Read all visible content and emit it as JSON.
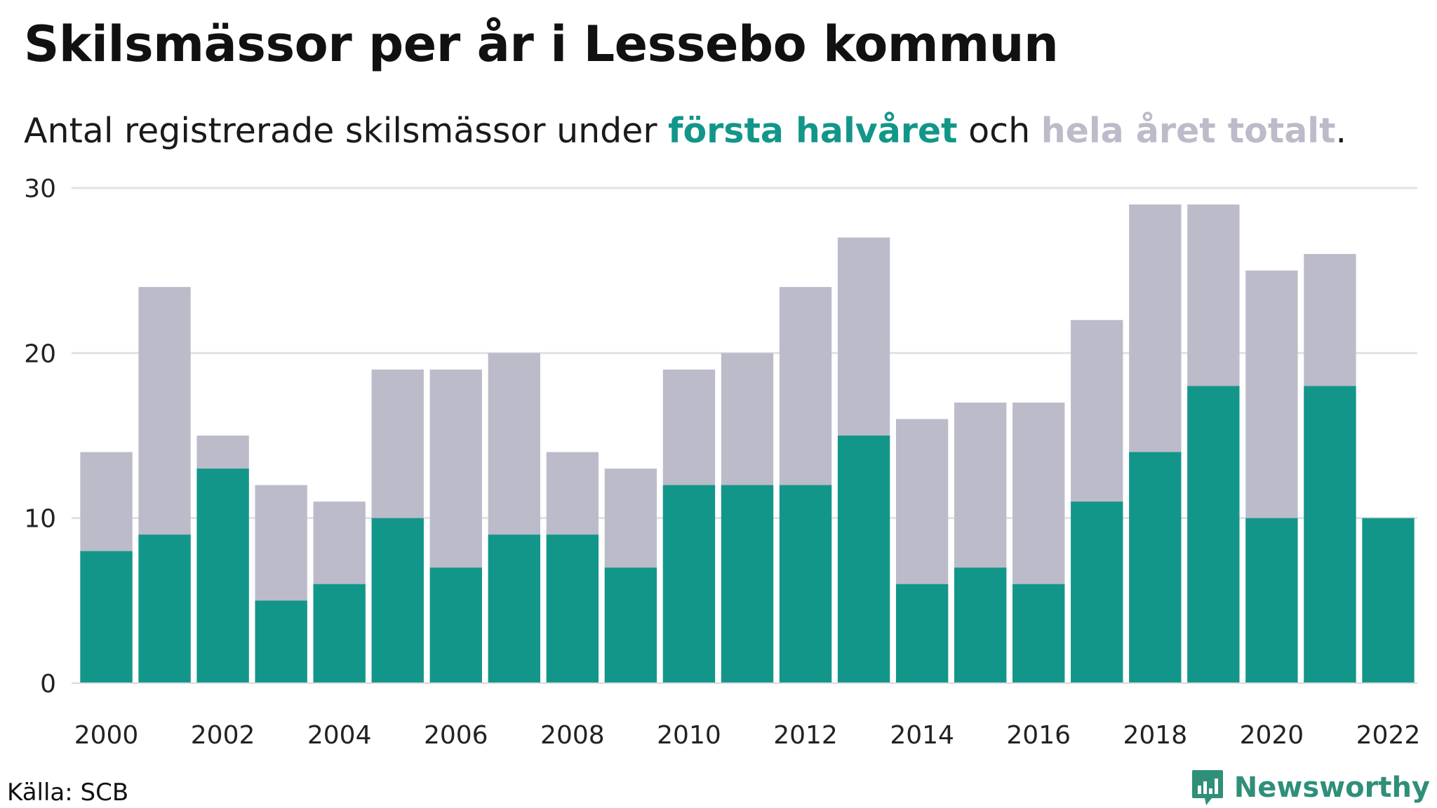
{
  "title": "Skilsmässor per år i Lessebo kommun",
  "subtitle": {
    "prefix": "Antal registrerade skilsmässor under ",
    "series1": "första halvåret",
    "middle": " och ",
    "series2": "hela året totalt",
    "suffix": "."
  },
  "source": "Källa: SCB",
  "brand": "Newsworthy",
  "colors": {
    "first_half": "#13968a",
    "full_year": "#bcbbc9",
    "grid": "#e2e2e6",
    "brand": "#2f8f79"
  },
  "chart_data": {
    "type": "bar",
    "x": [
      2000,
      2001,
      2002,
      2003,
      2004,
      2005,
      2006,
      2007,
      2008,
      2009,
      2010,
      2011,
      2012,
      2013,
      2014,
      2015,
      2016,
      2017,
      2018,
      2019,
      2020,
      2021,
      2022
    ],
    "series": [
      {
        "name": "hela året totalt",
        "values": [
          14,
          24,
          15,
          12,
          11,
          19,
          19,
          20,
          14,
          13,
          19,
          20,
          24,
          27,
          16,
          17,
          17,
          22,
          29,
          29,
          25,
          26,
          null
        ]
      },
      {
        "name": "första halvåret",
        "values": [
          8,
          9,
          13,
          5,
          6,
          10,
          7,
          9,
          9,
          7,
          12,
          12,
          12,
          15,
          6,
          7,
          6,
          11,
          14,
          18,
          10,
          18,
          10
        ]
      }
    ],
    "x_tick_labels": [
      "2000",
      "2002",
      "2004",
      "2006",
      "2008",
      "2010",
      "2012",
      "2014",
      "2016",
      "2018",
      "2020",
      "2022"
    ],
    "y_ticks": [
      0,
      10,
      20,
      30
    ],
    "ylim": [
      0,
      30
    ],
    "grid": true,
    "overlay": true
  }
}
